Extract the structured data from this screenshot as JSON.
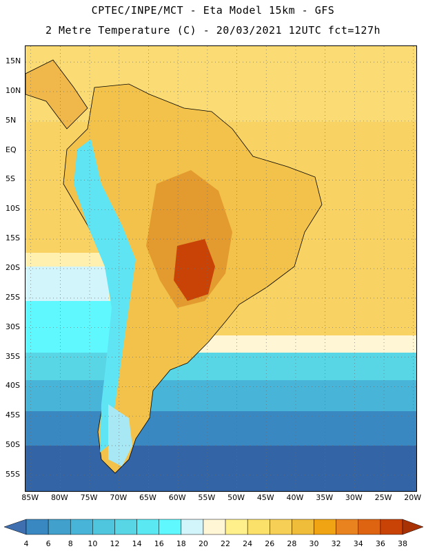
{
  "header": {
    "title_line1": "CPTEC/INPE/MCT -  Eta Model 15km - GFS",
    "title_line2": "2 Metre Temperature (C) - 20/03/2021 12UTC fct=127h"
  },
  "map": {
    "lat_labels": [
      "15N",
      "10N",
      "5N",
      "EQ",
      "5S",
      "10S",
      "15S",
      "20S",
      "25S",
      "30S",
      "35S",
      "40S",
      "45S",
      "50S",
      "55S"
    ],
    "lon_labels": [
      "85W",
      "80W",
      "75W",
      "70W",
      "65W",
      "60W",
      "55W",
      "50W",
      "45W",
      "40W",
      "35W",
      "30W",
      "25W",
      "20W"
    ],
    "lat_range": [
      15,
      -55
    ],
    "lon_range": [
      -85,
      -20
    ],
    "grid": "dotted"
  },
  "legend": {
    "labels": [
      "4",
      "6",
      "8",
      "10",
      "12",
      "14",
      "16",
      "18",
      "20",
      "22",
      "24",
      "26",
      "28",
      "30",
      "32",
      "34",
      "36",
      "38"
    ],
    "colors": [
      "#3f6fae",
      "#3a88c2",
      "#41a0cc",
      "#48b4d8",
      "#4fc6de",
      "#58d6e6",
      "#5ae8f2",
      "#5ff8ff",
      "#d2f4fb",
      "#fff6d6",
      "#fff08c",
      "#fbe06a",
      "#f6cf57",
      "#f0bd3a",
      "#f0a413",
      "#e9831f",
      "#de6412",
      "#c94307",
      "#a83204"
    ]
  }
}
